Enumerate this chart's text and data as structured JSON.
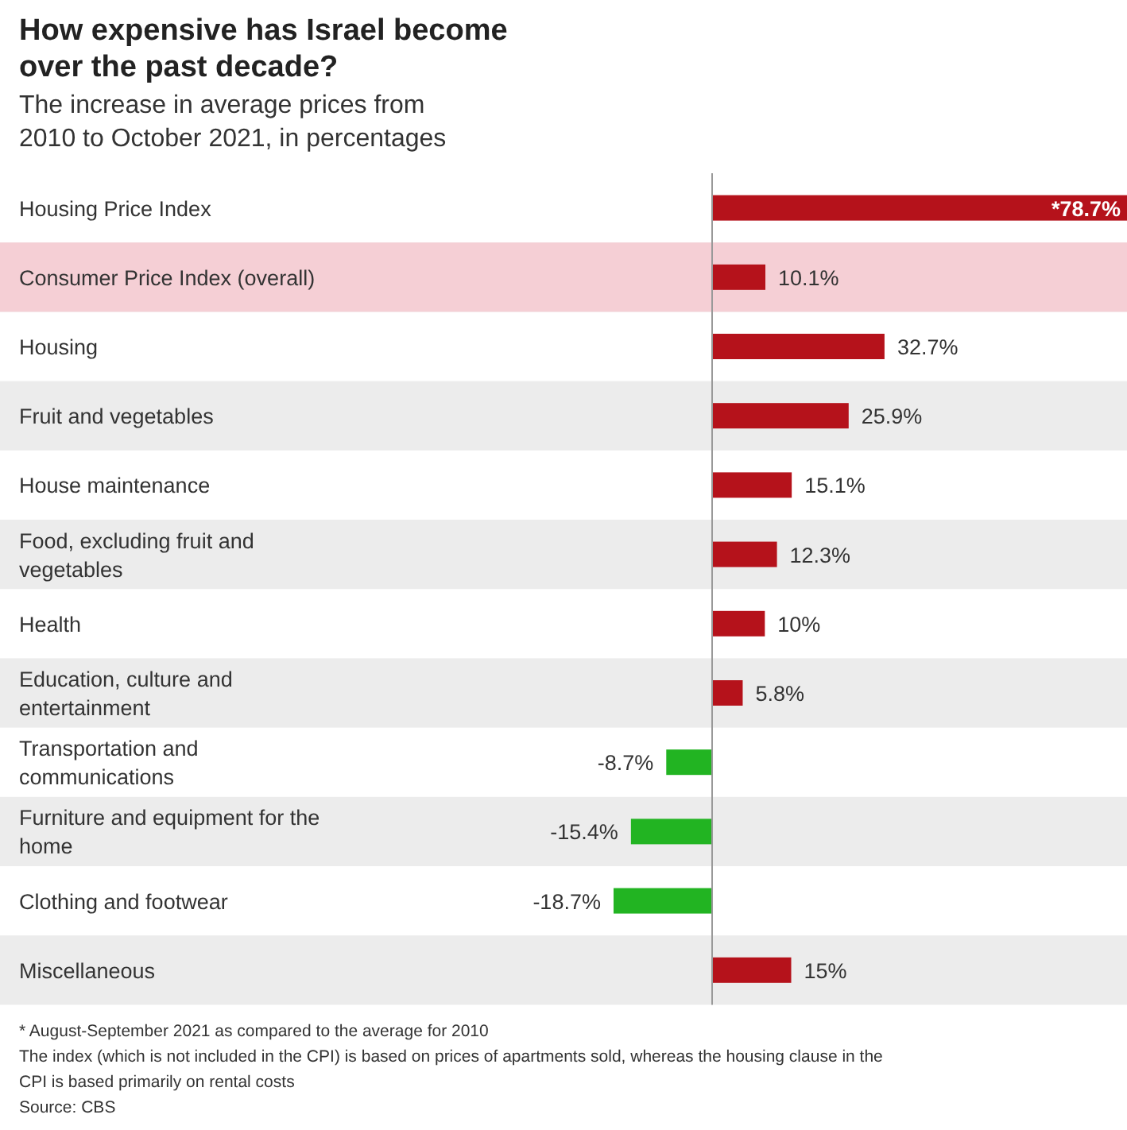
{
  "chart_data": {
    "type": "bar",
    "orientation": "horizontal",
    "title": "How expensive has Israel become over the past decade?",
    "subtitle": "The increase in average prices from 2010 to October 2021, in percentages",
    "categories": [
      "Housing Price Index",
      "Consumer Price Index (overall)",
      "Housing",
      "Fruit and vegetables",
      "House maintenance",
      "Food, excluding fruit and vegetables",
      "Health",
      "Education, culture and entertainment",
      "Transportation and communications",
      "Furniture and equipment for the home",
      "Clothing and footwear",
      "Miscellaneous"
    ],
    "values": [
      78.7,
      10.1,
      32.7,
      25.9,
      15.1,
      12.3,
      10,
      5.8,
      -8.7,
      -15.4,
      -18.7,
      15
    ],
    "colors": [
      "#b5121b",
      "#b5121b",
      "#b5121b",
      "#b5121b",
      "#b5121b",
      "#b5121b",
      "#b5121b",
      "#b5121b",
      "#22b422",
      "#22b422",
      "#22b422",
      "#b5121b"
    ],
    "value_labels": [
      "*78.7%",
      "10.1%",
      "32.7%",
      "25.9%",
      "15.1%",
      "12.3%",
      "10%",
      "5.8%",
      "-8.7%",
      "-15.4%",
      "-18.7%",
      "15%"
    ],
    "bands": [
      {
        "axis": "y",
        "from": "Consumer Price Index (overall)",
        "to": "Consumer Price Index (overall)",
        "color": "#f5cfd5"
      }
    ],
    "annotations": [
      "* August-September 2021 as compared to the average for 2010",
      "The index (which is not included in the CPI) is based on prices of apartments sold, whereas the housing clause in the CPI is based primarily on rental costs",
      "Source: CBS"
    ]
  }
}
